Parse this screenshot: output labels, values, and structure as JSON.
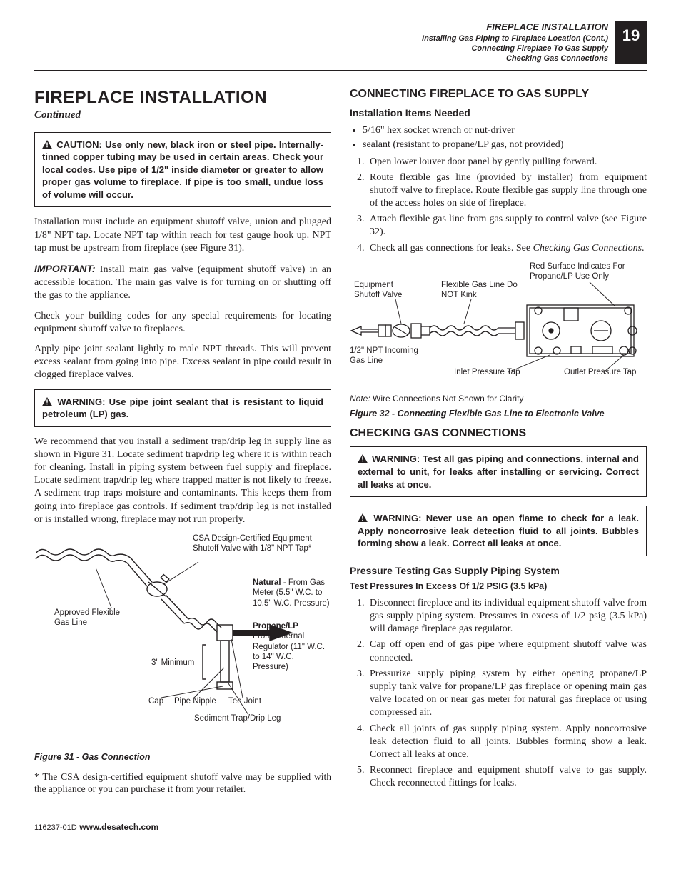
{
  "header": {
    "line1": "FIREPLACE INSTALLATION",
    "line2": "Installing Gas Piping to Fireplace Location (Cont.)",
    "line3": "Connecting Fireplace To Gas Supply",
    "line4": "Checking Gas Connections",
    "page_number": "19"
  },
  "left": {
    "title": "FIREPLACE INSTALLATION",
    "continued": "Continued",
    "caution_box": "CAUTION: Use only new, black iron or steel pipe. Internally-tinned copper tubing may be used in certain areas. Check your local codes. Use pipe of 1/2\" inside diameter or greater to allow proper gas volume to fireplace. If pipe is too small, undue loss of volume will occur.",
    "p1": "Installation must include an equipment shutoff valve, union and plugged 1/8\" NPT tap. Locate NPT tap within reach for test gauge hook up. NPT tap must be upstream from fireplace (see Figure 31).",
    "important_lead": "IMPORTANT:",
    "p2": " Install main gas valve (equipment shutoff valve) in an accessible location. The main gas valve is for turning on or shutting off the gas to the appliance.",
    "p3": "Check your building codes for any special requirements for locating equipment shutoff valve to fireplaces.",
    "p4": "Apply pipe joint sealant lightly to male NPT threads. This will prevent excess sealant from going into pipe. Excess sealant in pipe could result in clogged fireplace valves.",
    "warn_box": "WARNING: Use pipe joint sealant that is resistant to liquid petroleum (LP) gas.",
    "p5": "We recommend that you install a sediment trap/drip leg in supply line as shown in Figure 31. Locate sediment trap/drip leg where it is within reach for cleaning. Install in piping system between fuel supply and fireplace. Locate sediment trap/drip leg where trapped matter is not likely to freeze. A sediment trap traps moisture and contaminants. This keeps them from going into fireplace gas controls. If sediment trap/drip leg is not installed or is installed wrong, fireplace may not run properly.",
    "fig31": {
      "csa_label": "CSA Design-Certified Equipment Shutoff Valve with 1/8\" NPT Tap*",
      "natural_bold": "Natural",
      "natural_text": " - From Gas Meter (5.5\" W.C. to 10.5\" W.C. Pressure)",
      "propane_bold": "Propane/LP",
      "propane_text": "From External Regulator (11\" W.C. to 14\" W.C. Pressure)",
      "flex_line": "Approved Flexible Gas Line",
      "min": "3\" Minimum",
      "cap": "Cap",
      "nipple": "Pipe Nipple",
      "tee": "Tee Joint",
      "sediment": "Sediment Trap/Drip Leg",
      "caption": "Figure 31 - Gas Connection",
      "footnote": "* The CSA design-certified equipment shutoff valve may be supplied with the appliance or you can purchase it from your retailer."
    }
  },
  "right": {
    "h_connect": "CONNECTING FIREPLACE TO GAS SUPPLY",
    "h_items": "Installation Items Needed",
    "bullets": [
      "5/16\" hex socket wrench or nut-driver",
      "sealant (resistant to propane/LP gas, not provided)"
    ],
    "steps1": [
      "Open lower louver door panel by gently pulling forward.",
      "Route flexible gas line (provided by installer) from equipment shutoff valve to fireplace. Route flexible gas supply line through one of the access holes on side of fireplace.",
      "Attach flexible gas line from gas supply to control valve (see Figure 32).",
      "Check all gas connections for leaks. See <i>Checking Gas Connections</i>."
    ],
    "fig32": {
      "red_label": "Red Surface Indicates For Propane/LP Use Only",
      "eq_valve": "Equipment Shutoff Valve",
      "flex_line": "Flexible Gas Line Do NOT Kink",
      "incoming": "1/2\" NPT Incoming Gas Line",
      "inlet": "Inlet Pressure Tap",
      "outlet": "Outlet Pressure Tap",
      "note_lead": "Note:",
      "note_text": " Wire Connections Not Shown for Clarity",
      "caption": "Figure 32 - Connecting Flexible Gas Line to Electronic Valve"
    },
    "h_checking": "CHECKING GAS CONNECTIONS",
    "warn1": "WARNING: Test all gas piping and connections, internal and external to unit, for leaks after installing or servicing. Correct all leaks at once.",
    "warn2": "WARNING: Never use an open flame to check for a leak. Apply noncorrosive leak detection fluid to all joints. Bubbles forming show a leak. Correct all leaks at once.",
    "h_pressure": "Pressure Testing Gas Supply Piping System",
    "h_test": "Test Pressures In Excess Of 1/2 PSIG (3.5 kPa)",
    "steps2": [
      "Disconnect fireplace and its individual equipment shutoff valve from gas supply piping system. Pressures in excess of 1/2 psig (3.5 kPa) will damage fireplace gas regulator.",
      "Cap off open end of gas pipe where equipment shutoff valve was connected.",
      "Pressurize supply piping system by either opening propane/LP supply tank valve for propane/LP gas fireplace or opening main gas valve located on or near gas meter for natural gas fireplace or using compressed air.",
      "Check all joints of gas supply piping system. Apply noncorrosive leak detection fluid to all joints. Bubbles forming show a leak. Correct all leaks at once.",
      "Reconnect fireplace and equipment shutoff valve to gas supply. Check reconnected fittings for leaks."
    ]
  },
  "footer": {
    "doc_id": "116237-01D",
    "url": "www.desatech.com"
  },
  "colors": {
    "text": "#231f20",
    "bg": "#ffffff"
  }
}
